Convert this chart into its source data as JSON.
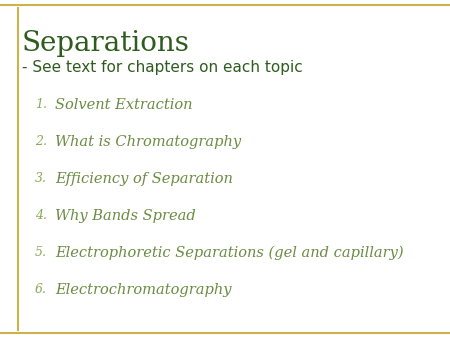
{
  "title": "Separations",
  "subtitle": "- See text for chapters on each topic",
  "items": [
    "Solvent Extraction",
    "What is Chromatography",
    "Efficiency of Separation",
    "Why Bands Spread",
    "Electrophoretic Separations (gel and capillary)",
    "Electrochromatography"
  ],
  "bg_color": "#ffffff",
  "title_color": "#2e5c1e",
  "subtitle_color": "#2e5c1e",
  "item_color": "#6b8c42",
  "number_color": "#8aaa55",
  "border_color": "#c8b44a",
  "left_line_color": "#8aaa44",
  "title_fontsize": 20,
  "subtitle_fontsize": 11,
  "item_fontsize": 10.5,
  "number_fontsize": 9
}
